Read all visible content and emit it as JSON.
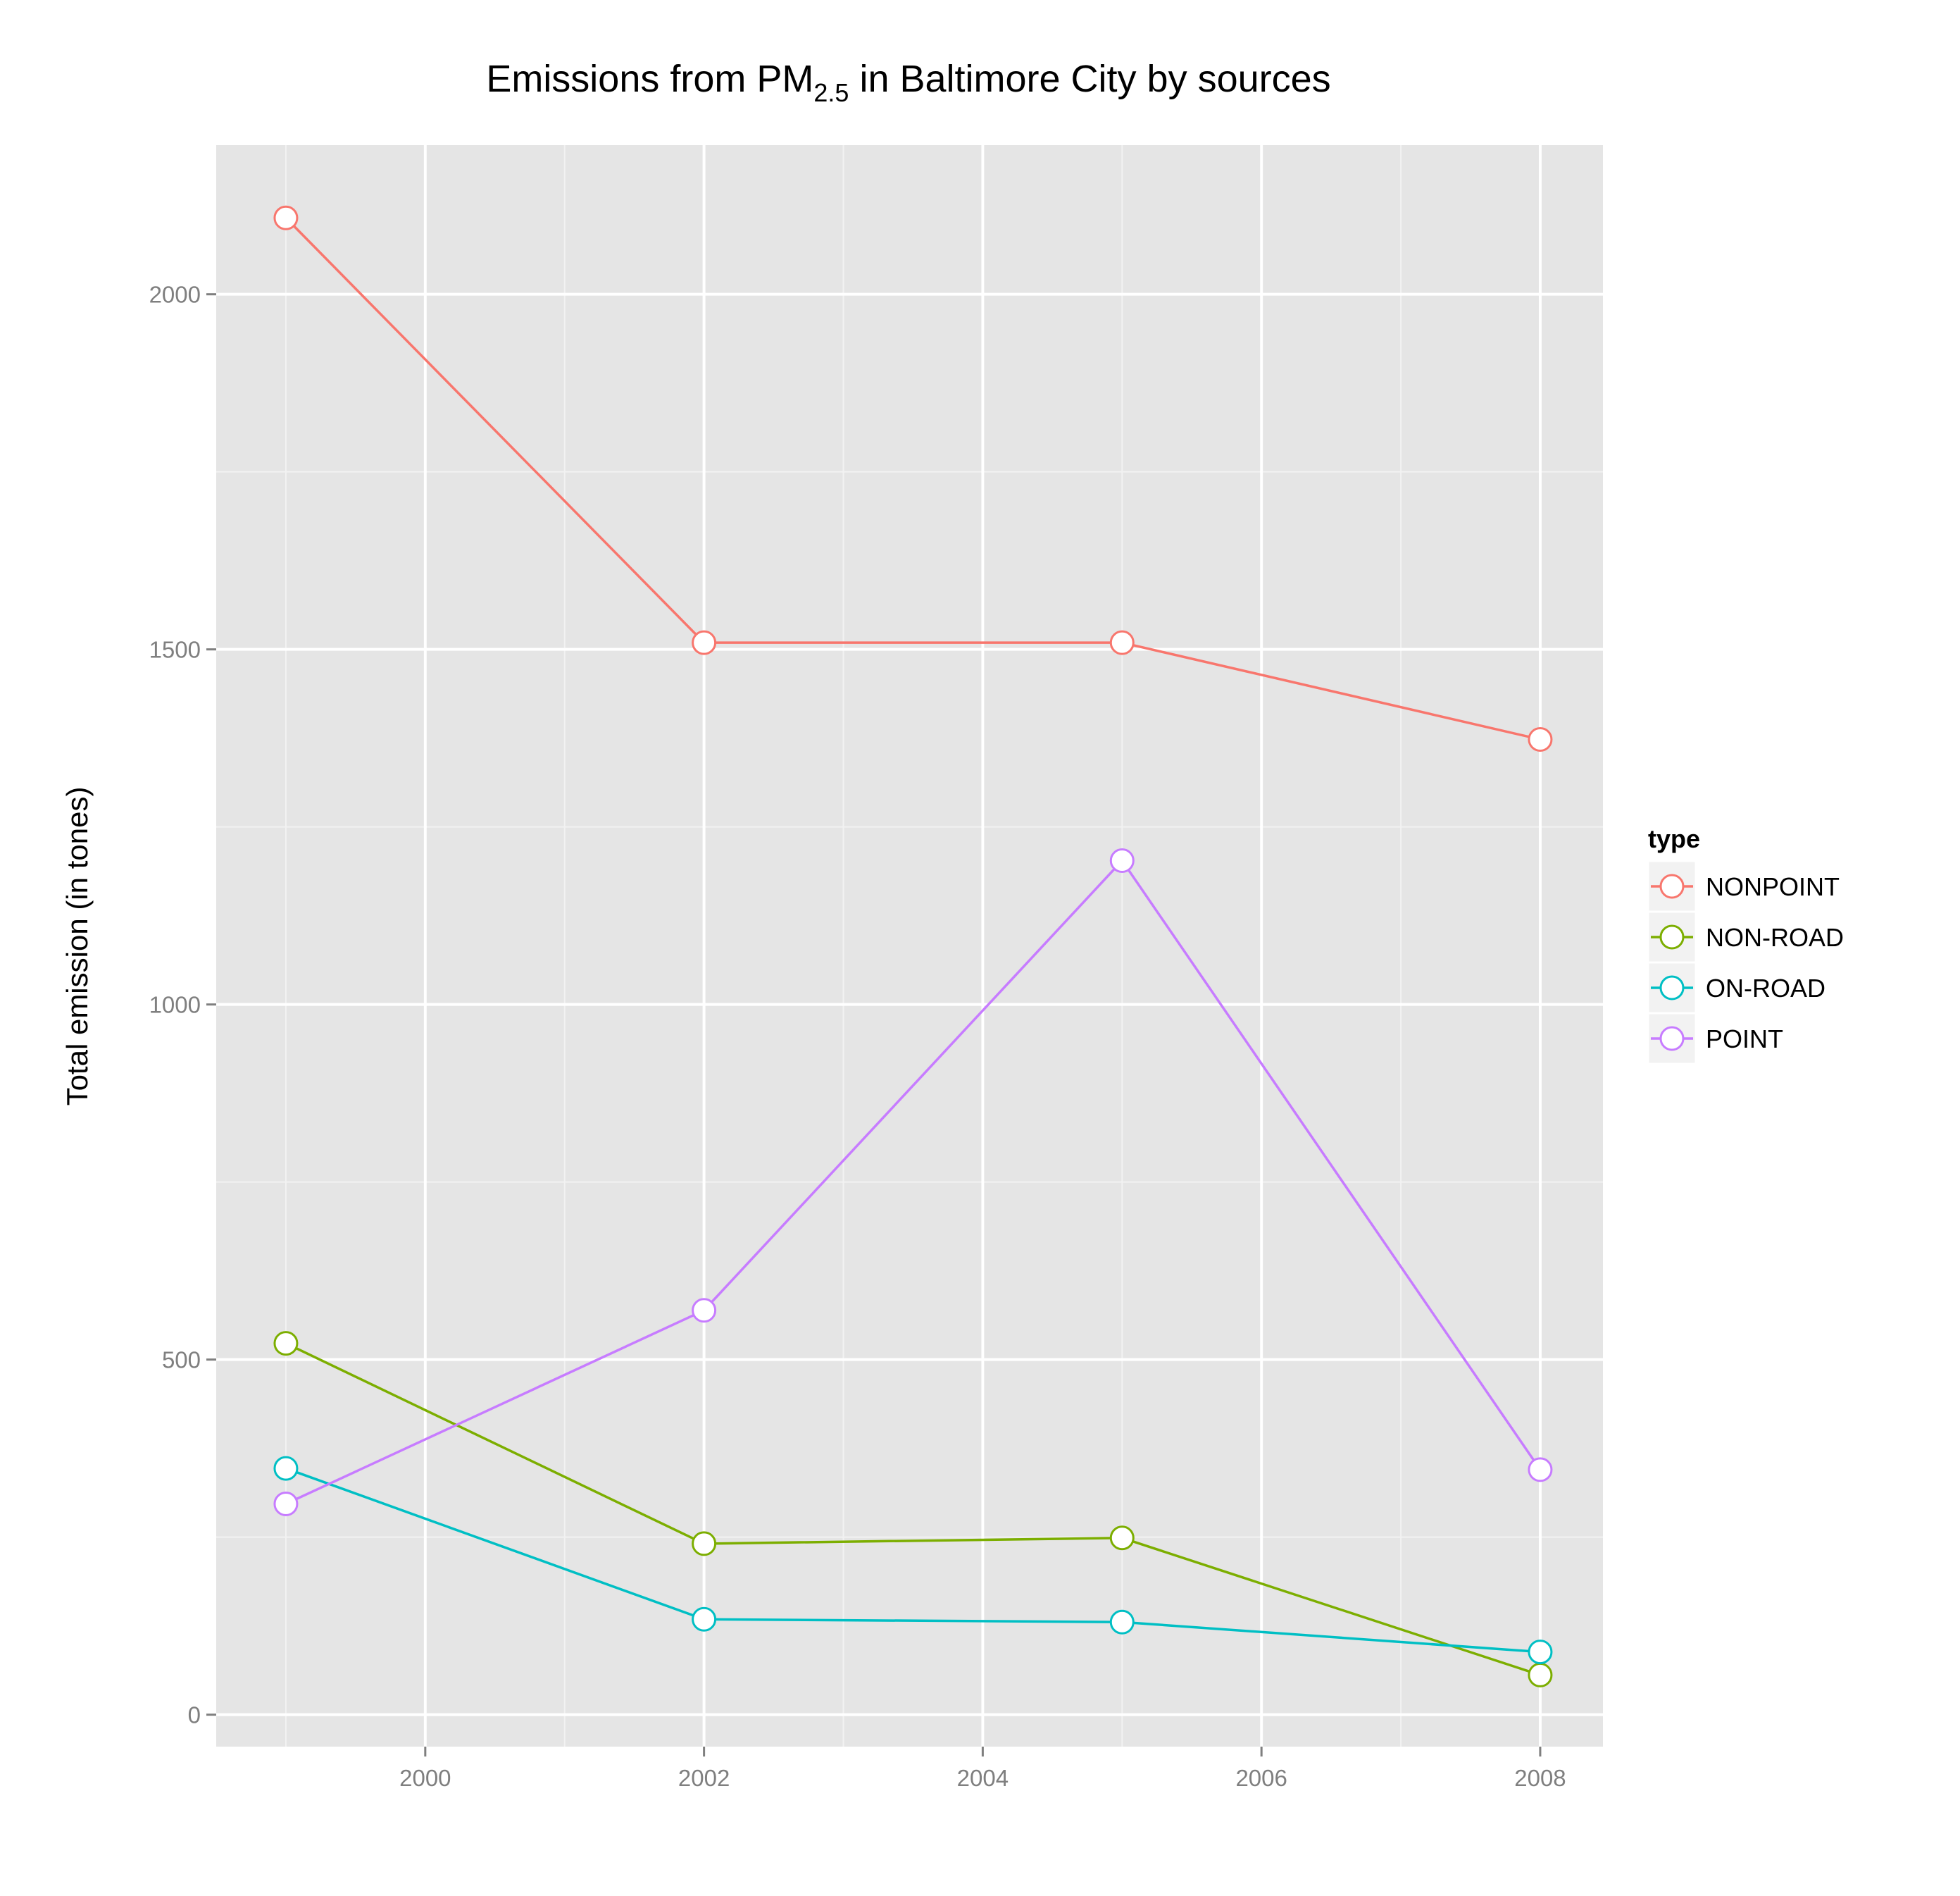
{
  "chart_data": {
    "type": "line",
    "title": {
      "prefix": "Emissions from PM",
      "subscript": "2.5",
      "suffix": " in Baltimore City by sources"
    },
    "xlabel": "",
    "ylabel": "Total emission (in tones)",
    "x": [
      1999,
      2002,
      2005,
      2008
    ],
    "xticks": [
      2000,
      2002,
      2004,
      2006,
      2008
    ],
    "xlim": [
      1998.5,
      2008.45
    ],
    "yticks": [
      0,
      500,
      1000,
      1500,
      2000
    ],
    "ylim": [
      -45,
      2210
    ],
    "grid": true,
    "panel_background": "#e5e5e5",
    "legend": {
      "title": "type",
      "placement": "right"
    },
    "series": [
      {
        "name": "NONPOINT",
        "color": "#F8766D",
        "values": [
          2107.6,
          1509.5,
          1509.5,
          1373.2
        ]
      },
      {
        "name": "NON-ROAD",
        "color": "#7CAE00",
        "values": [
          522.9,
          240.8,
          248.9,
          55.8
        ]
      },
      {
        "name": "ON-ROAD",
        "color": "#00BFC4",
        "values": [
          346.8,
          134.3,
          130.4,
          88.3
        ]
      },
      {
        "name": "POINT",
        "color": "#C77CFF",
        "values": [
          296.8,
          569.3,
          1202.5,
          344.98
        ]
      }
    ]
  }
}
